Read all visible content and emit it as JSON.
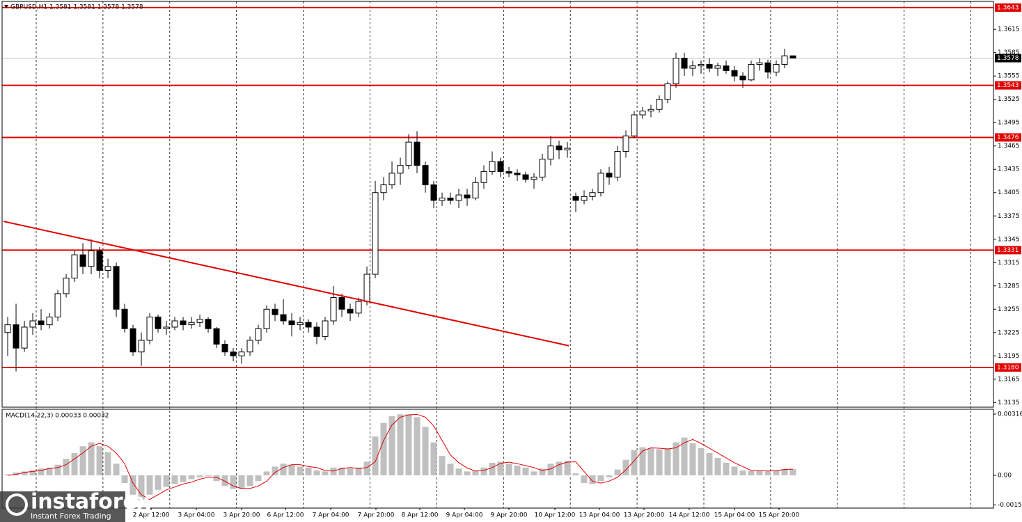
{
  "chart_data": [
    {
      "type": "candlestick",
      "title": "GBPUSD,H1  1.3581 1.3581 1.3578 1.3578",
      "open": [
        1.3225,
        1.3235,
        1.3205,
        1.3232,
        1.324,
        1.3235,
        1.3245,
        1.3275,
        1.3295,
        1.3325,
        1.331,
        1.333,
        1.3305,
        1.331,
        1.3255,
        1.323,
        1.32,
        1.3215,
        1.3245,
        1.323,
        1.3232,
        1.324,
        1.3235,
        1.3238,
        1.3242,
        1.323,
        1.321,
        1.32,
        1.3195,
        1.32,
        1.3215,
        1.323,
        1.3255,
        1.3248,
        1.324,
        1.3235,
        1.3238,
        1.3232,
        1.322,
        1.324,
        1.327,
        1.3255,
        1.325,
        1.3265,
        1.33,
        1.3405,
        1.3415,
        1.343,
        1.344,
        1.347,
        1.344,
        1.3415,
        1.3395,
        1.3398,
        1.3395,
        1.3402,
        1.3398,
        1.3418,
        1.3432,
        1.3445,
        1.3432,
        1.343,
        1.3428,
        1.3422,
        1.3425,
        1.3448,
        1.3465,
        1.346,
        1.34,
        1.3395,
        1.34,
        1.3405,
        1.343,
        1.3425,
        1.3458,
        1.3478,
        1.3505,
        1.351,
        1.3512,
        1.3525,
        1.3545,
        1.3578,
        1.3565,
        1.3568,
        1.357,
        1.3565,
        1.3568,
        1.3562,
        1.3555,
        1.355,
        1.357,
        1.3572,
        1.356,
        1.357,
        1.3581
      ],
      "high": [
        1.3245,
        1.3262,
        1.324,
        1.325,
        1.3255,
        1.325,
        1.328,
        1.33,
        1.333,
        1.334,
        1.3345,
        1.3335,
        1.332,
        1.3315,
        1.3262,
        1.3235,
        1.3225,
        1.325,
        1.3248,
        1.324,
        1.3245,
        1.3245,
        1.3245,
        1.3248,
        1.3245,
        1.3232,
        1.3215,
        1.3205,
        1.3205,
        1.322,
        1.3235,
        1.326,
        1.3262,
        1.3268,
        1.325,
        1.3245,
        1.3242,
        1.3238,
        1.3245,
        1.3285,
        1.3275,
        1.3262,
        1.327,
        1.331,
        1.342,
        1.3425,
        1.3445,
        1.345,
        1.348,
        1.3484,
        1.3445,
        1.342,
        1.3405,
        1.3405,
        1.341,
        1.341,
        1.3425,
        1.344,
        1.3458,
        1.345,
        1.3438,
        1.3435,
        1.3432,
        1.343,
        1.3455,
        1.3478,
        1.3472,
        1.347,
        1.3405,
        1.3408,
        1.341,
        1.3435,
        1.3438,
        1.3465,
        1.3485,
        1.351,
        1.3515,
        1.3518,
        1.353,
        1.3548,
        1.3585,
        1.3585,
        1.3575,
        1.3575,
        1.3578,
        1.3572,
        1.3575,
        1.3568,
        1.356,
        1.3575,
        1.3578,
        1.3576,
        1.3575,
        1.359,
        1.3581
      ],
      "low": [
        1.3195,
        1.3175,
        1.32,
        1.3222,
        1.3228,
        1.323,
        1.324,
        1.327,
        1.329,
        1.33,
        1.33,
        1.3295,
        1.3295,
        1.3245,
        1.3225,
        1.3195,
        1.3182,
        1.321,
        1.3225,
        1.3222,
        1.3228,
        1.3228,
        1.323,
        1.3232,
        1.3225,
        1.3205,
        1.3195,
        1.3188,
        1.3185,
        1.3195,
        1.321,
        1.3225,
        1.324,
        1.3235,
        1.322,
        1.3228,
        1.3225,
        1.321,
        1.3215,
        1.3235,
        1.3245,
        1.324,
        1.3245,
        1.326,
        1.3295,
        1.3395,
        1.341,
        1.3415,
        1.3435,
        1.343,
        1.3405,
        1.3385,
        1.3388,
        1.339,
        1.3385,
        1.3388,
        1.3395,
        1.341,
        1.3428,
        1.3425,
        1.3425,
        1.342,
        1.3418,
        1.341,
        1.342,
        1.344,
        1.3448,
        1.345,
        1.338,
        1.339,
        1.3395,
        1.34,
        1.3415,
        1.342,
        1.345,
        1.3475,
        1.35,
        1.3502,
        1.3508,
        1.352,
        1.354,
        1.3555,
        1.3555,
        1.3558,
        1.356,
        1.3555,
        1.3558,
        1.3548,
        1.354,
        1.3548,
        1.3562,
        1.3552,
        1.3555,
        1.3565,
        1.3578
      ],
      "close": [
        1.3235,
        1.3205,
        1.3232,
        1.324,
        1.3235,
        1.3245,
        1.3275,
        1.3295,
        1.3325,
        1.331,
        1.333,
        1.3305,
        1.331,
        1.3255,
        1.323,
        1.32,
        1.3215,
        1.3245,
        1.323,
        1.3232,
        1.324,
        1.3235,
        1.3238,
        1.3242,
        1.323,
        1.321,
        1.32,
        1.3195,
        1.32,
        1.3215,
        1.323,
        1.3255,
        1.3248,
        1.324,
        1.3235,
        1.3238,
        1.3232,
        1.322,
        1.324,
        1.327,
        1.3255,
        1.325,
        1.3265,
        1.33,
        1.3405,
        1.3415,
        1.343,
        1.344,
        1.347,
        1.344,
        1.3415,
        1.3395,
        1.3398,
        1.3395,
        1.3402,
        1.3398,
        1.3418,
        1.3432,
        1.3445,
        1.3432,
        1.343,
        1.3428,
        1.3422,
        1.3425,
        1.3448,
        1.3465,
        1.346,
        1.3462,
        1.3395,
        1.34,
        1.3405,
        1.343,
        1.3425,
        1.3458,
        1.3478,
        1.3505,
        1.351,
        1.3512,
        1.3525,
        1.3545,
        1.3578,
        1.3565,
        1.3568,
        1.357,
        1.3565,
        1.3568,
        1.3562,
        1.3555,
        1.355,
        1.357,
        1.3572,
        1.356,
        1.357,
        1.3581,
        1.3578
      ],
      "up_color": "#ffffff",
      "down_color": "#000000",
      "wick_color": "#000000",
      "xlim": [
        -0.67,
        118
      ],
      "ylim": [
        1.3129,
        1.3651
      ],
      "yticks": [
        1.3135,
        1.3165,
        1.3195,
        1.3225,
        1.3255,
        1.3285,
        1.3315,
        1.3345,
        1.3375,
        1.3405,
        1.3435,
        1.3465,
        1.3495,
        1.3525,
        1.3555,
        1.3585,
        1.3615
      ],
      "xticks": [
        {
          "value": 17.17,
          "label": "2 Apr 12:00"
        },
        {
          "value": 22.58,
          "label": "3 Apr 04:00"
        },
        {
          "value": 28,
          "label": "3 Apr 20:00"
        },
        {
          "value": 33.25,
          "label": "6 Apr 12:00"
        },
        {
          "value": 38.67,
          "label": "7 Apr 04:00"
        },
        {
          "value": 44.08,
          "label": "7 Apr 20:00"
        },
        {
          "value": 49.33,
          "label": "8 Apr 12:00"
        },
        {
          "value": 54.67,
          "label": "9 Apr 04:00"
        },
        {
          "value": 60,
          "label": "9 Apr 20:00"
        },
        {
          "value": 65.5,
          "label": "10 Apr 12:00"
        },
        {
          "value": 70.83,
          "label": "13 Apr 04:00"
        },
        {
          "value": 76.17,
          "label": "13 Apr 20:00"
        },
        {
          "value": 81.58,
          "label": "14 Apr 12:00"
        },
        {
          "value": 87,
          "label": "15 Apr 04:00"
        },
        {
          "value": 92.33,
          "label": "15 Apr 20:00"
        }
      ],
      "levels": [
        1.3643,
        1.3543,
        1.3476,
        1.3331,
        {
          "value": 1.318,
          "label": "1.3180"
        }
      ],
      "level_color": "#e00000",
      "current_price": 1.3578,
      "trendline": {
        "x": [
          -0.5,
          67.17
        ],
        "y": [
          1.3368,
          1.3208
        ],
        "color": "#e00000"
      },
      "grid": true
    },
    {
      "type": "macd",
      "title": "MACD(14,22,3) 0.00033 0.00032",
      "series": [
        {
          "color": "#c0c0c0",
          "values": [
            5e-05,
            0.00015,
            0.0002,
            0.00025,
            0.00035,
            0.0004,
            0.00055,
            0.00085,
            0.00115,
            0.0015,
            0.0017,
            0.0015,
            0.0012,
            0.0006,
            -0.0004,
            -0.001,
            -0.0013,
            -0.001,
            -0.00075,
            -0.0006,
            -0.00045,
            -0.00035,
            -0.0002,
            -0.0001,
            -5e-05,
            -0.0003,
            -0.00055,
            -0.0007,
            -0.0007,
            -0.00055,
            -0.0003,
            0.0002,
            0.00045,
            0.0006,
            0.00055,
            0.00045,
            0.0004,
            0.00025,
            0.0002,
            0.0004,
            0.0004,
            0.00035,
            0.0004,
            0.0007,
            0.002,
            0.0027,
            0.00305,
            0.00315,
            0.00315,
            0.003,
            0.0025,
            0.0017,
            0.001,
            0.0006,
            0.00035,
            0.0002,
            0.00025,
            0.0004,
            0.00065,
            0.0007,
            0.0006,
            0.0005,
            0.0004,
            0.0002,
            0.00035,
            0.0006,
            0.0007,
            0.00075,
            0.0001,
            -0.0004,
            -0.00045,
            -0.0003,
            -0.0001,
            0.0003,
            0.0008,
            0.0013,
            0.00145,
            0.0014,
            0.00135,
            0.0014,
            0.0017,
            0.00195,
            0.00165,
            0.0014,
            0.00115,
            0.0009,
            0.00065,
            0.00045,
            0.00025,
            0.00022,
            0.00025,
            0.0002,
            0.00025,
            0.00033,
            0.00033
          ]
        },
        {
          "color": "#e00000",
          "values": [
            0.0,
            5e-05,
            0.00015,
            0.0002,
            0.00025,
            0.00035,
            0.0004,
            0.00055,
            0.00085,
            0.00115,
            0.0015,
            0.00165,
            0.0015,
            0.00115,
            0.0006,
            -0.0004,
            -0.001,
            -0.00125,
            -0.001,
            -0.00075,
            -0.0006,
            -0.00045,
            -0.00035,
            -0.0002,
            -0.0001,
            -0.0001,
            -0.0003,
            -0.00055,
            -0.00068,
            -0.00068,
            -0.00055,
            -0.0003,
            0.00015,
            0.0004,
            0.00055,
            0.00055,
            0.00045,
            0.0004,
            0.00025,
            0.00022,
            0.00035,
            0.0004,
            0.00035,
            0.0004,
            0.0007,
            0.0018,
            0.0026,
            0.003,
            0.00312,
            0.00315,
            0.003,
            0.00255,
            0.0018,
            0.00105,
            0.00065,
            0.00038,
            0.00022,
            0.00025,
            0.0004,
            0.00062,
            0.00068,
            0.0006,
            0.0005,
            0.0004,
            0.00025,
            0.00033,
            0.00055,
            0.00068,
            0.0007,
            0.0002,
            -0.0003,
            -0.0004,
            -0.0003,
            -0.0001,
            0.00028,
            0.00075,
            0.00125,
            0.00142,
            0.0014,
            0.00136,
            0.00142,
            0.00168,
            0.00185,
            0.00165,
            0.0014,
            0.00115,
            0.0009,
            0.00065,
            0.00045,
            0.00025,
            0.00024,
            0.00022,
            0.00024,
            0.0003,
            0.00032
          ]
        }
      ],
      "xlim": [
        -0.67,
        118
      ],
      "ylim": [
        -0.00169,
        0.00341
      ],
      "yticks": [
        -0.00153,
        {
          "value": 0,
          "label": "0.00"
        },
        0.00316
      ]
    }
  ],
  "watermark": {
    "brand": "instaforex",
    "tagline": "Instant Forex Trading"
  }
}
